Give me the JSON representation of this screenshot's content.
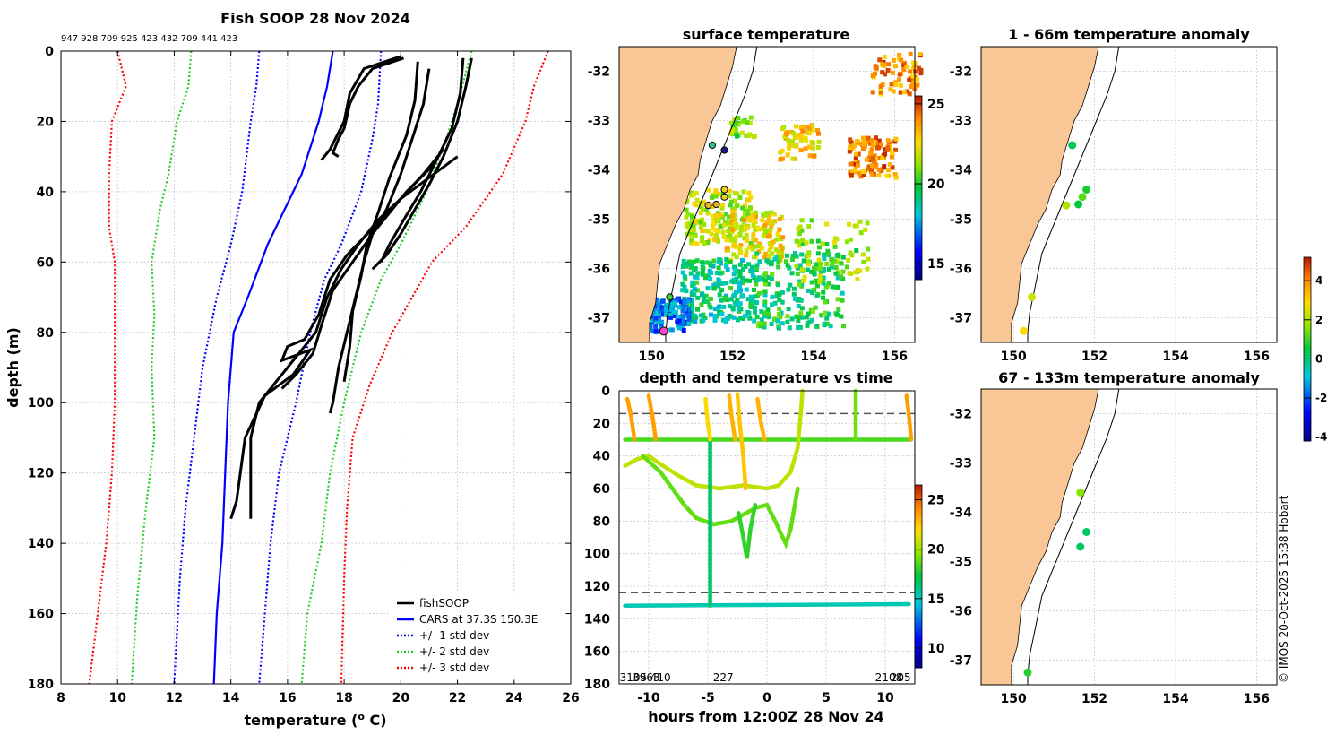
{
  "figure": {
    "copyright": "© IMOS 20-Oct-2025 15:38 Hobart"
  },
  "chart_data": [
    {
      "id": "profile",
      "type": "line",
      "title": "Fish SOOP 28 Nov 2024",
      "subtitle": "947 928 709 925 423 432 709 441 423",
      "xlabel": "temperature (o C)",
      "ylabel": "depth (m)",
      "xlim": [
        8,
        26
      ],
      "ylim": [
        180,
        0
      ],
      "xticks": [
        8,
        10,
        12,
        14,
        16,
        18,
        20,
        22,
        24,
        26
      ],
      "yticks": [
        0,
        20,
        40,
        60,
        80,
        100,
        120,
        140,
        160,
        180
      ],
      "grid": true,
      "legend": [
        "fishSOOP",
        "CARS at 37.3S 150.3E",
        "+/- 1 std dev",
        "+/- 2 std dev",
        "+/- 3 std dev"
      ],
      "series": [
        {
          "name": "CARS mean",
          "color": "#0000ff",
          "style": "solid",
          "points": [
            [
              17.6,
              0
            ],
            [
              17.4,
              10
            ],
            [
              17.1,
              20
            ],
            [
              16.5,
              35
            ],
            [
              15.9,
              45
            ],
            [
              15.3,
              55
            ],
            [
              14.6,
              70
            ],
            [
              14.1,
              80
            ],
            [
              13.9,
              100
            ],
            [
              13.8,
              120
            ],
            [
              13.7,
              140
            ],
            [
              13.5,
              160
            ],
            [
              13.4,
              180
            ]
          ]
        },
        {
          "name": "+1 sd",
          "color": "#0000ff",
          "style": "dot",
          "points": [
            [
              19.3,
              0
            ],
            [
              19.2,
              15
            ],
            [
              19.0,
              25
            ],
            [
              18.6,
              40
            ],
            [
              17.9,
              55
            ],
            [
              17.3,
              65
            ],
            [
              16.8,
              80
            ],
            [
              16.3,
              100
            ],
            [
              15.7,
              120
            ],
            [
              15.4,
              140
            ],
            [
              15.2,
              160
            ],
            [
              15.0,
              180
            ]
          ]
        },
        {
          "name": "-1 sd",
          "color": "#0000ff",
          "style": "dot",
          "points": [
            [
              15.0,
              0
            ],
            [
              14.9,
              10
            ],
            [
              14.7,
              20
            ],
            [
              14.4,
              40
            ],
            [
              14.0,
              55
            ],
            [
              13.5,
              70
            ],
            [
              13.0,
              90
            ],
            [
              12.7,
              110
            ],
            [
              12.4,
              130
            ],
            [
              12.2,
              150
            ],
            [
              12.1,
              165
            ],
            [
              12.0,
              180
            ]
          ]
        },
        {
          "name": "+2 sd",
          "color": "#22cc22",
          "style": "dot",
          "points": [
            [
              22.5,
              0
            ],
            [
              22.0,
              15
            ],
            [
              21.6,
              25
            ],
            [
              20.9,
              40
            ],
            [
              20.0,
              55
            ],
            [
              19.3,
              65
            ],
            [
              18.6,
              80
            ],
            [
              18.0,
              100
            ],
            [
              17.5,
              120
            ],
            [
              17.2,
              140
            ],
            [
              16.7,
              160
            ],
            [
              16.5,
              180
            ]
          ]
        },
        {
          "name": "-2 sd",
          "color": "#22cc22",
          "style": "dot",
          "points": [
            [
              12.6,
              0
            ],
            [
              12.5,
              10
            ],
            [
              12.1,
              20
            ],
            [
              11.8,
              35
            ],
            [
              11.5,
              45
            ],
            [
              11.2,
              60
            ],
            [
              11.3,
              75
            ],
            [
              11.2,
              90
            ],
            [
              11.3,
              110
            ],
            [
              11.0,
              130
            ],
            [
              10.7,
              155
            ],
            [
              10.5,
              180
            ]
          ]
        },
        {
          "name": "+3 sd",
          "color": "#ff0000",
          "style": "dot",
          "points": [
            [
              25.2,
              0
            ],
            [
              24.7,
              10
            ],
            [
              24.4,
              20
            ],
            [
              23.6,
              35
            ],
            [
              22.3,
              50
            ],
            [
              21.1,
              60
            ],
            [
              20.4,
              70
            ],
            [
              19.7,
              80
            ],
            [
              18.9,
              95
            ],
            [
              18.3,
              110
            ],
            [
              18.1,
              130
            ],
            [
              18.0,
              150
            ],
            [
              17.9,
              180
            ]
          ]
        },
        {
          "name": "-3 sd",
          "color": "#ff0000",
          "style": "dot",
          "points": [
            [
              10.0,
              0
            ],
            [
              10.3,
              10
            ],
            [
              9.8,
              20
            ],
            [
              9.7,
              35
            ],
            [
              9.7,
              50
            ],
            [
              9.9,
              60
            ],
            [
              9.9,
              75
            ],
            [
              9.9,
              100
            ],
            [
              9.8,
              120
            ],
            [
              9.6,
              140
            ],
            [
              9.3,
              160
            ],
            [
              9.0,
              180
            ]
          ]
        },
        {
          "name": "fishSOOP",
          "color": "#000000",
          "style": "solid",
          "points": [
            [
              20.1,
              2
            ],
            [
              19.0,
              5
            ],
            [
              18.5,
              10
            ],
            [
              18.2,
              15
            ],
            [
              18.0,
              22
            ],
            [
              17.8,
              25
            ],
            [
              17.6,
              29
            ],
            [
              17.8,
              30
            ]
          ]
        },
        {
          "name": "fishSOOP",
          "color": "#000000",
          "style": "solid",
          "points": [
            [
              20.0,
              1.5
            ],
            [
              18.7,
              5
            ],
            [
              18.2,
              12
            ],
            [
              18.0,
              20
            ],
            [
              17.5,
              28
            ],
            [
              17.2,
              31
            ]
          ]
        },
        {
          "name": "fishSOOP",
          "color": "#000000",
          "style": "solid",
          "points": [
            [
              22.5,
              2
            ],
            [
              22.3,
              10
            ],
            [
              22.0,
              20
            ],
            [
              21.5,
              30
            ],
            [
              21.0,
              38
            ],
            [
              20.5,
              45
            ],
            [
              20.0,
              52
            ],
            [
              19.5,
              58
            ],
            [
              19.0,
              62
            ]
          ]
        },
        {
          "name": "fishSOOP",
          "color": "#000000",
          "style": "solid",
          "points": [
            [
              22.2,
              2
            ],
            [
              22.1,
              12
            ],
            [
              21.8,
              22
            ],
            [
              21.2,
              32
            ],
            [
              20.7,
              40
            ],
            [
              20.1,
              48
            ],
            [
              19.6,
              55
            ],
            [
              19.3,
              60
            ]
          ]
        },
        {
          "name": "fishSOOP",
          "color": "#000000",
          "style": "solid",
          "points": [
            [
              21.0,
              5
            ],
            [
              20.8,
              15
            ],
            [
              20.4,
              25
            ],
            [
              20.0,
              35
            ],
            [
              19.5,
              45
            ],
            [
              19.0,
              52
            ],
            [
              18.7,
              60
            ],
            [
              18.4,
              70
            ],
            [
              18.1,
              80
            ],
            [
              17.8,
              90
            ],
            [
              17.6,
              100
            ],
            [
              17.5,
              103
            ]
          ]
        },
        {
          "name": "fishSOOP",
          "color": "#000000",
          "style": "solid",
          "points": [
            [
              20.6,
              3
            ],
            [
              20.5,
              14
            ],
            [
              20.2,
              24
            ],
            [
              19.6,
              36
            ],
            [
              19.2,
              46
            ],
            [
              18.8,
              55
            ],
            [
              18.6,
              64
            ],
            [
              18.3,
              74
            ],
            [
              18.2,
              84
            ],
            [
              18.0,
              94
            ]
          ]
        },
        {
          "name": "fishSOOP",
          "color": "#000000",
          "style": "solid",
          "points": [
            [
              21.5,
              28
            ],
            [
              20.8,
              35
            ],
            [
              20.0,
              42
            ],
            [
              19.2,
              48
            ],
            [
              18.5,
              55
            ],
            [
              17.9,
              62
            ],
            [
              17.4,
              70
            ],
            [
              17.0,
              80
            ],
            [
              16.5,
              85
            ],
            [
              16.0,
              90
            ],
            [
              15.5,
              95
            ],
            [
              15.0,
              100
            ],
            [
              14.7,
              110
            ],
            [
              14.7,
              133
            ]
          ]
        },
        {
          "name": "fishSOOP",
          "color": "#000000",
          "style": "solid",
          "points": [
            [
              22.0,
              30
            ],
            [
              21.0,
              36
            ],
            [
              20.0,
              42
            ],
            [
              19.3,
              48
            ],
            [
              18.7,
              53
            ],
            [
              18.1,
              58
            ],
            [
              17.5,
              65
            ],
            [
              17.1,
              75
            ],
            [
              16.6,
              82
            ],
            [
              16.0,
              84
            ],
            [
              15.8,
              88
            ],
            [
              16.8,
              85
            ],
            [
              16.2,
              92
            ],
            [
              15.2,
              98
            ],
            [
              14.5,
              110
            ],
            [
              14.2,
              128
            ],
            [
              14.0,
              133
            ]
          ]
        },
        {
          "name": "fishSOOP",
          "color": "#000000",
          "style": "solid",
          "points": [
            [
              21.2,
              32
            ],
            [
              20.2,
              40
            ],
            [
              19.6,
              46
            ],
            [
              19.0,
              52
            ],
            [
              18.3,
              60
            ],
            [
              17.6,
              68
            ],
            [
              17.2,
              78
            ],
            [
              16.9,
              86
            ],
            [
              16.3,
              92
            ],
            [
              15.8,
              96
            ]
          ]
        }
      ]
    },
    {
      "id": "sst-map",
      "type": "heatmap",
      "title": "surface temperature",
      "xlim": [
        149.2,
        156.5
      ],
      "ylim": [
        -37.5,
        -31.5
      ],
      "xticks": [
        150,
        152,
        154,
        156
      ],
      "yticks": [
        -32,
        -33,
        -34,
        -35,
        -36,
        -37
      ],
      "colorbar": {
        "min": 14,
        "max": 25.5,
        "ticks": [
          15,
          20,
          25
        ]
      },
      "stations": [
        [
          151.6,
          -33.5
        ],
        [
          151.8,
          -33.6
        ],
        [
          151.8,
          -34.4
        ],
        [
          151.8,
          -34.55
        ],
        [
          151.6,
          -34.7
        ],
        [
          151.4,
          -34.7
        ],
        [
          150.4,
          -36.6
        ],
        [
          150.3,
          -37.3
        ]
      ]
    },
    {
      "id": "depth-time",
      "type": "scatter",
      "title": "depth and temperature vs time",
      "xlabel": "hours from 12:00Z 28 Nov 24",
      "xlim": [
        -12.5,
        12.5
      ],
      "ylim": [
        180,
        0
      ],
      "xticks": [
        -10,
        -5,
        0,
        5,
        10
      ],
      "yticks": [
        0,
        20,
        40,
        60,
        80,
        100,
        120,
        140,
        160,
        180
      ],
      "hlines": [
        14,
        124
      ],
      "colorbar": {
        "min": 8,
        "max": 26.5,
        "ticks": [
          10,
          15,
          20,
          25
        ]
      },
      "annotations": [
        {
          "x": -11.3,
          "text": "3105"
        },
        {
          "x": -10.2,
          "text": "3963"
        },
        {
          "x": -9.0,
          "text": "410"
        },
        {
          "x": -3.7,
          "text": "227"
        },
        {
          "x": 10.3,
          "text": "2108"
        },
        {
          "x": 11.3,
          "text": "205"
        }
      ]
    },
    {
      "id": "anom-shallow",
      "type": "scatter",
      "title": "1 - 66m temperature anomaly",
      "xlim": [
        149.2,
        156.5
      ],
      "ylim": [
        -37.5,
        -31.5
      ],
      "xticks": [
        150,
        152,
        154,
        156
      ],
      "yticks": [
        -32,
        -33,
        -34,
        -35,
        -36,
        -37
      ],
      "points": [
        {
          "lon": 151.45,
          "lat": -33.5,
          "value": 0.3
        },
        {
          "lon": 151.8,
          "lat": -34.4,
          "value": 0.7
        },
        {
          "lon": 151.7,
          "lat": -34.55,
          "value": 1.2
        },
        {
          "lon": 151.6,
          "lat": -34.7,
          "value": 0.5
        },
        {
          "lon": 151.3,
          "lat": -34.72,
          "value": 2.0
        },
        {
          "lon": 150.45,
          "lat": -36.58,
          "value": 2.3
        },
        {
          "lon": 150.25,
          "lat": -37.27,
          "value": 2.8
        }
      ]
    },
    {
      "id": "anom-deep",
      "type": "scatter",
      "title": "67 - 133m temperature anomaly",
      "xlim": [
        149.2,
        156.5
      ],
      "ylim": [
        -37.5,
        -31.5
      ],
      "xticks": [
        150,
        152,
        154,
        156
      ],
      "yticks": [
        -32,
        -33,
        -34,
        -35,
        -36,
        -37
      ],
      "colorbar": {
        "min": -4.2,
        "max": 5.2,
        "ticks": [
          -4,
          -2,
          0,
          2,
          4
        ]
      },
      "points": [
        {
          "lon": 151.65,
          "lat": -33.6,
          "value": 1.6
        },
        {
          "lon": 151.8,
          "lat": -34.4,
          "value": 0.1
        },
        {
          "lon": 151.65,
          "lat": -34.7,
          "value": 0.2
        },
        {
          "lon": 150.35,
          "lat": -37.25,
          "value": 0.8
        }
      ]
    }
  ]
}
